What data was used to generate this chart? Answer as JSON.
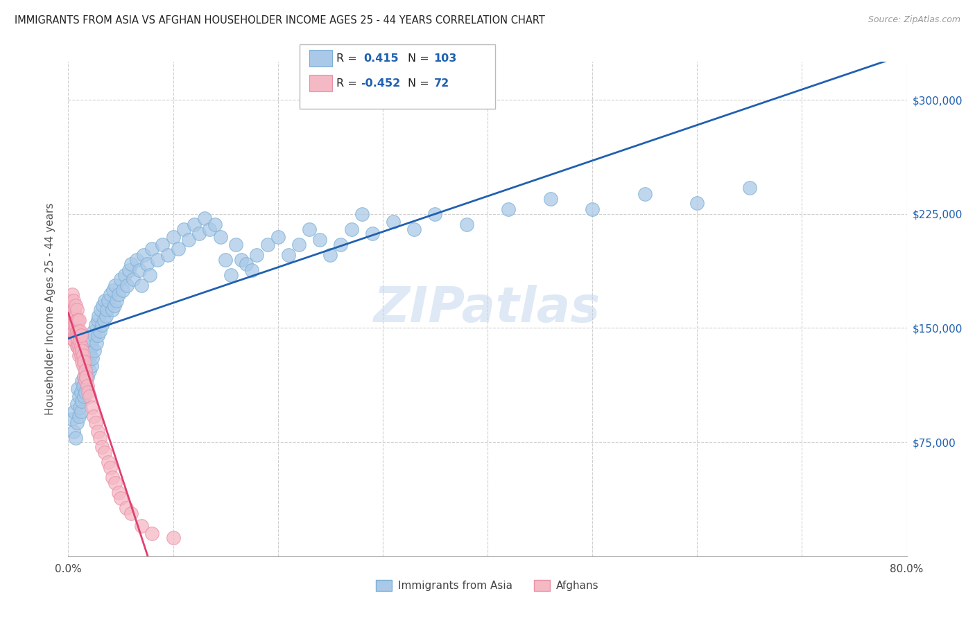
{
  "title": "IMMIGRANTS FROM ASIA VS AFGHAN HOUSEHOLDER INCOME AGES 25 - 44 YEARS CORRELATION CHART",
  "source": "Source: ZipAtlas.com",
  "ylabel": "Householder Income Ages 25 - 44 years",
  "ytick_labels": [
    "$75,000",
    "$150,000",
    "$225,000",
    "$300,000"
  ],
  "ytick_values": [
    75000,
    150000,
    225000,
    300000
  ],
  "ylim": [
    0,
    325000
  ],
  "xlim": [
    0.0,
    0.8
  ],
  "watermark": "ZIPatlas",
  "asia_color": "#aac9e8",
  "asia_edge": "#7aafd4",
  "afghan_color": "#f5b8c5",
  "afghan_edge": "#e890a5",
  "blue_line_color": "#2060b0",
  "pink_line_color": "#e04070",
  "asia_scatter": [
    [
      0.004,
      90000
    ],
    [
      0.005,
      82000
    ],
    [
      0.006,
      95000
    ],
    [
      0.007,
      78000
    ],
    [
      0.008,
      100000
    ],
    [
      0.008,
      88000
    ],
    [
      0.009,
      110000
    ],
    [
      0.01,
      92000
    ],
    [
      0.01,
      105000
    ],
    [
      0.011,
      98000
    ],
    [
      0.012,
      108000
    ],
    [
      0.012,
      95000
    ],
    [
      0.013,
      115000
    ],
    [
      0.013,
      102000
    ],
    [
      0.014,
      112000
    ],
    [
      0.015,
      105000
    ],
    [
      0.015,
      118000
    ],
    [
      0.016,
      122000
    ],
    [
      0.016,
      108000
    ],
    [
      0.017,
      125000
    ],
    [
      0.017,
      115000
    ],
    [
      0.018,
      130000
    ],
    [
      0.018,
      118000
    ],
    [
      0.019,
      128000
    ],
    [
      0.02,
      135000
    ],
    [
      0.02,
      122000
    ],
    [
      0.021,
      132000
    ],
    [
      0.022,
      138000
    ],
    [
      0.022,
      125000
    ],
    [
      0.023,
      142000
    ],
    [
      0.023,
      130000
    ],
    [
      0.024,
      148000
    ],
    [
      0.025,
      135000
    ],
    [
      0.025,
      145000
    ],
    [
      0.026,
      152000
    ],
    [
      0.027,
      140000
    ],
    [
      0.028,
      155000
    ],
    [
      0.028,
      145000
    ],
    [
      0.029,
      158000
    ],
    [
      0.03,
      148000
    ],
    [
      0.031,
      162000
    ],
    [
      0.032,
      152000
    ],
    [
      0.033,
      165000
    ],
    [
      0.034,
      155000
    ],
    [
      0.035,
      168000
    ],
    [
      0.036,
      158000
    ],
    [
      0.037,
      162000
    ],
    [
      0.038,
      168000
    ],
    [
      0.04,
      172000
    ],
    [
      0.042,
      162000
    ],
    [
      0.043,
      175000
    ],
    [
      0.044,
      165000
    ],
    [
      0.045,
      178000
    ],
    [
      0.046,
      168000
    ],
    [
      0.048,
      172000
    ],
    [
      0.05,
      182000
    ],
    [
      0.052,
      175000
    ],
    [
      0.054,
      185000
    ],
    [
      0.056,
      178000
    ],
    [
      0.058,
      188000
    ],
    [
      0.06,
      192000
    ],
    [
      0.062,
      182000
    ],
    [
      0.065,
      195000
    ],
    [
      0.068,
      188000
    ],
    [
      0.07,
      178000
    ],
    [
      0.072,
      198000
    ],
    [
      0.075,
      192000
    ],
    [
      0.078,
      185000
    ],
    [
      0.08,
      202000
    ],
    [
      0.085,
      195000
    ],
    [
      0.09,
      205000
    ],
    [
      0.095,
      198000
    ],
    [
      0.1,
      210000
    ],
    [
      0.105,
      202000
    ],
    [
      0.11,
      215000
    ],
    [
      0.115,
      208000
    ],
    [
      0.12,
      218000
    ],
    [
      0.125,
      212000
    ],
    [
      0.13,
      222000
    ],
    [
      0.135,
      215000
    ],
    [
      0.14,
      218000
    ],
    [
      0.145,
      210000
    ],
    [
      0.15,
      195000
    ],
    [
      0.155,
      185000
    ],
    [
      0.16,
      205000
    ],
    [
      0.165,
      195000
    ],
    [
      0.17,
      192000
    ],
    [
      0.175,
      188000
    ],
    [
      0.18,
      198000
    ],
    [
      0.19,
      205000
    ],
    [
      0.2,
      210000
    ],
    [
      0.21,
      198000
    ],
    [
      0.22,
      205000
    ],
    [
      0.23,
      215000
    ],
    [
      0.24,
      208000
    ],
    [
      0.25,
      198000
    ],
    [
      0.26,
      205000
    ],
    [
      0.27,
      215000
    ],
    [
      0.28,
      225000
    ],
    [
      0.29,
      212000
    ],
    [
      0.31,
      220000
    ],
    [
      0.33,
      215000
    ],
    [
      0.35,
      225000
    ],
    [
      0.38,
      218000
    ],
    [
      0.42,
      228000
    ],
    [
      0.46,
      235000
    ],
    [
      0.5,
      228000
    ],
    [
      0.55,
      238000
    ],
    [
      0.6,
      232000
    ],
    [
      0.65,
      242000
    ]
  ],
  "afghan_scatter": [
    [
      0.002,
      148000
    ],
    [
      0.002,
      162000
    ],
    [
      0.003,
      155000
    ],
    [
      0.003,
      145000
    ],
    [
      0.003,
      168000
    ],
    [
      0.004,
      158000
    ],
    [
      0.004,
      148000
    ],
    [
      0.004,
      172000
    ],
    [
      0.005,
      162000
    ],
    [
      0.005,
      152000
    ],
    [
      0.005,
      142000
    ],
    [
      0.005,
      168000
    ],
    [
      0.005,
      155000
    ],
    [
      0.006,
      162000
    ],
    [
      0.006,
      148000
    ],
    [
      0.006,
      158000
    ],
    [
      0.006,
      142000
    ],
    [
      0.006,
      152000
    ],
    [
      0.007,
      158000
    ],
    [
      0.007,
      145000
    ],
    [
      0.007,
      165000
    ],
    [
      0.007,
      152000
    ],
    [
      0.008,
      155000
    ],
    [
      0.008,
      145000
    ],
    [
      0.008,
      162000
    ],
    [
      0.008,
      148000
    ],
    [
      0.008,
      138000
    ],
    [
      0.009,
      155000
    ],
    [
      0.009,
      148000
    ],
    [
      0.009,
      142000
    ],
    [
      0.009,
      138000
    ],
    [
      0.01,
      145000
    ],
    [
      0.01,
      138000
    ],
    [
      0.01,
      148000
    ],
    [
      0.01,
      132000
    ],
    [
      0.01,
      155000
    ],
    [
      0.011,
      142000
    ],
    [
      0.011,
      135000
    ],
    [
      0.011,
      148000
    ],
    [
      0.012,
      138000
    ],
    [
      0.012,
      132000
    ],
    [
      0.012,
      145000
    ],
    [
      0.013,
      135000
    ],
    [
      0.013,
      128000
    ],
    [
      0.014,
      132000
    ],
    [
      0.014,
      125000
    ],
    [
      0.015,
      128000
    ],
    [
      0.015,
      118000
    ],
    [
      0.016,
      122000
    ],
    [
      0.016,
      115000
    ],
    [
      0.017,
      118000
    ],
    [
      0.018,
      112000
    ],
    [
      0.019,
      108000
    ],
    [
      0.02,
      105000
    ],
    [
      0.022,
      98000
    ],
    [
      0.024,
      92000
    ],
    [
      0.026,
      88000
    ],
    [
      0.028,
      82000
    ],
    [
      0.03,
      78000
    ],
    [
      0.032,
      72000
    ],
    [
      0.035,
      68000
    ],
    [
      0.038,
      62000
    ],
    [
      0.04,
      58000
    ],
    [
      0.042,
      52000
    ],
    [
      0.045,
      48000
    ],
    [
      0.048,
      42000
    ],
    [
      0.05,
      38000
    ],
    [
      0.055,
      32000
    ],
    [
      0.06,
      28000
    ],
    [
      0.07,
      20000
    ],
    [
      0.08,
      15000
    ],
    [
      0.1,
      12000
    ]
  ],
  "background_color": "#ffffff",
  "grid_color": "#d0d0d0",
  "title_color": "#222222",
  "axis_label_color": "#555555"
}
